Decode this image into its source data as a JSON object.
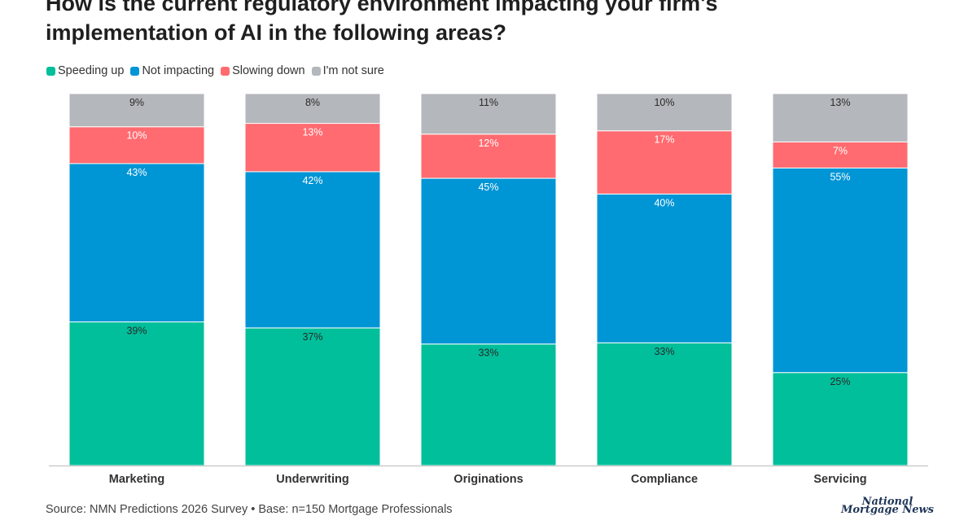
{
  "title_lines": [
    "How is the current regulatory environment impacting your firm's",
    "implementation of AI in the following areas?"
  ],
  "legend": [
    {
      "label": "Speeding up",
      "color": "#00bf9a"
    },
    {
      "label": "Not impacting",
      "color": "#0095d5"
    },
    {
      "label": "Slowing down",
      "color": "#ff6b70"
    },
    {
      "label": "I'm not sure",
      "color": "#b4b7bb"
    }
  ],
  "chart_data": {
    "type": "bar",
    "stacked": true,
    "categories": [
      "Marketing",
      "Underwriting",
      "Originations",
      "Compliance",
      "Servicing"
    ],
    "series": [
      {
        "name": "Speeding up",
        "color": "#00bf9a",
        "values": [
          39,
          37,
          33,
          33,
          25
        ]
      },
      {
        "name": "Not impacting",
        "color": "#0095d5",
        "values": [
          43,
          42,
          45,
          40,
          55
        ]
      },
      {
        "name": "Slowing down",
        "color": "#ff6b70",
        "values": [
          10,
          13,
          12,
          17,
          7
        ]
      },
      {
        "name": "I'm not sure",
        "color": "#b4b7bb",
        "values": [
          9,
          8,
          11,
          10,
          13
        ]
      }
    ],
    "labels": [
      [
        "39%",
        "37%",
        "33%",
        "33%",
        "25%"
      ],
      [
        "43%",
        "42%",
        "45%",
        "40%",
        "55%"
      ],
      [
        "10%",
        "13%",
        "12%",
        "17%",
        "7%"
      ],
      [
        "9%",
        "8%",
        "11%",
        "10%",
        "13%"
      ]
    ],
    "legend_position": "top-left",
    "grid": false
  },
  "source": "Source: NMN Predictions 2026 Survey • Base: n=150 Mortgage Professionals",
  "logo_lines": [
    "National",
    "Mortgage News"
  ]
}
